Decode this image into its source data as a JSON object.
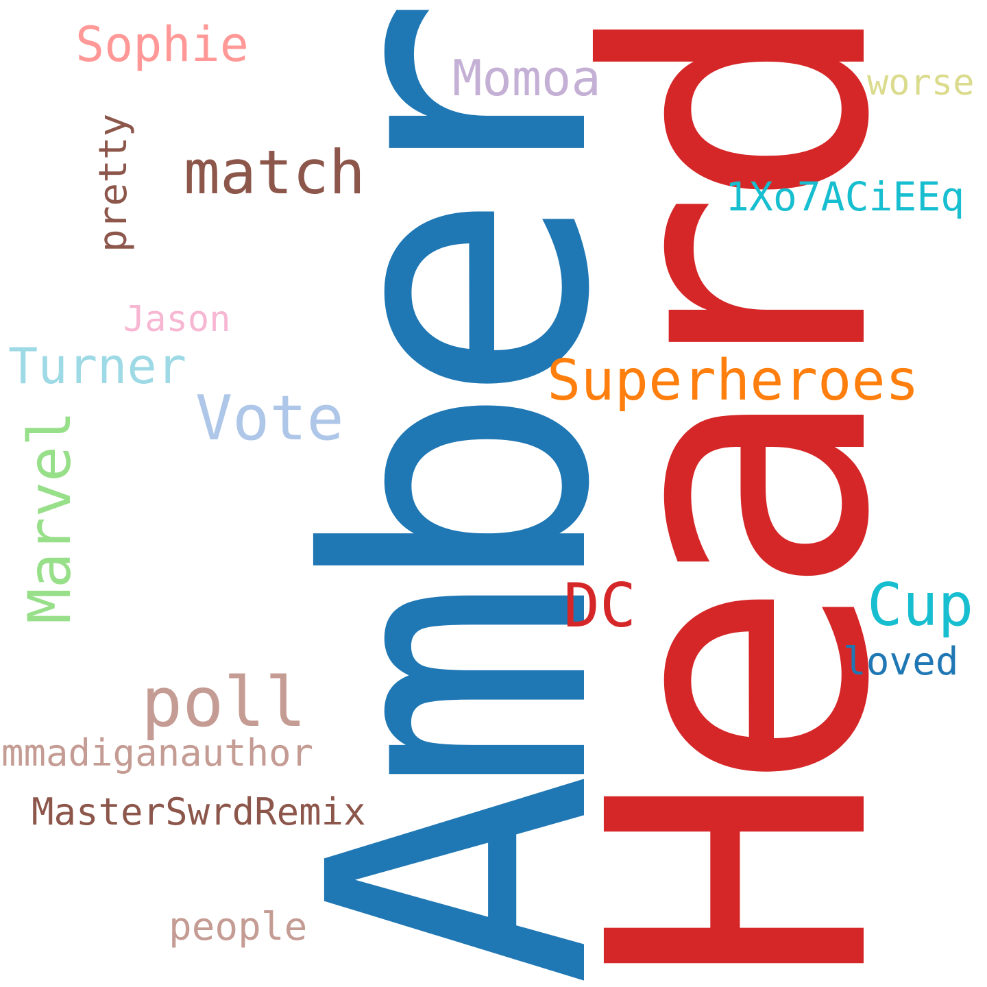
{
  "wordcloud": {
    "words": {
      "amber": {
        "text": "Amber",
        "color": "#1f77b4"
      },
      "heard": {
        "text": "Heard",
        "color": "#d62728"
      },
      "superheroes": {
        "text": "Superheroes",
        "color": "#ff7f0e"
      },
      "poll": {
        "text": "poll",
        "color": "#c49c94"
      },
      "vote": {
        "text": "Vote",
        "color": "#aec7e8"
      },
      "match": {
        "text": "match",
        "color": "#8c564b"
      },
      "dc": {
        "text": "DC",
        "color": "#d62728"
      },
      "cup": {
        "text": "Cup",
        "color": "#17becf"
      },
      "marvel": {
        "text": "Marvel",
        "color": "#98df8a"
      },
      "momoa": {
        "text": "Momoa",
        "color": "#c5b0d5"
      },
      "turner": {
        "text": "Turner",
        "color": "#9edae5"
      },
      "sophie": {
        "text": "Sophie",
        "color": "#ff9896"
      },
      "code": {
        "text": "1Xo7ACiEEq",
        "color": "#17becf"
      },
      "loved": {
        "text": "loved",
        "color": "#1f77b4"
      },
      "pretty": {
        "text": "pretty",
        "color": "#8c564b"
      },
      "worse": {
        "text": "worse",
        "color": "#dbdb8d"
      },
      "jason": {
        "text": "Jason",
        "color": "#f7b6d2"
      },
      "mmadiganauthor": {
        "text": "mmadiganauthor",
        "color": "#c49c94"
      },
      "masterswrdremix": {
        "text": "MasterSwrdRemix",
        "color": "#8c564b"
      },
      "people": {
        "text": "people",
        "color": "#c49c94"
      }
    }
  }
}
